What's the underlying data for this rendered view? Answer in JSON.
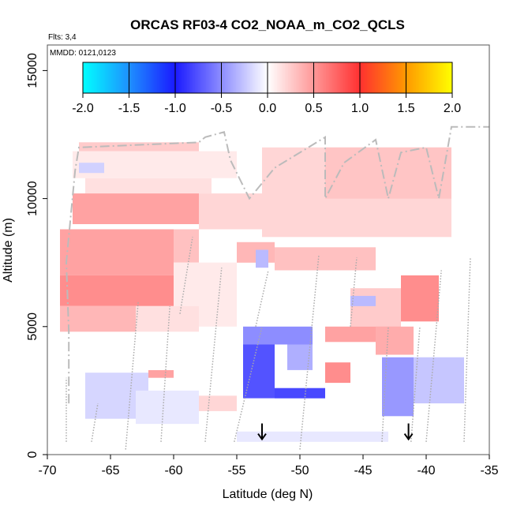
{
  "chart_data": {
    "type": "heatmap",
    "title": "ORCAS RF03-4 CO2_NOAA_m_CO2_QCLS",
    "annotations": [
      "Flts: 3,4",
      "MMDD: 0121,0123"
    ],
    "xlabel": "Latitude (deg N)",
    "ylabel": "Altitude (m)",
    "xlim": [
      -70,
      -35
    ],
    "ylim": [
      0,
      16000
    ],
    "x_ticks": [
      -70,
      -65,
      -60,
      -55,
      -50,
      -45,
      -40,
      -35
    ],
    "x_tick_labels": [
      "-70",
      "-65",
      "-60",
      "-55",
      "-50",
      "-45",
      "-40",
      "-35"
    ],
    "y_ticks": [
      0,
      5000,
      10000,
      15000
    ],
    "y_tick_labels": [
      "0",
      "5000",
      "10000",
      "15000"
    ],
    "colorbar": {
      "range": [
        -2.0,
        2.0
      ],
      "ticks": [
        -2.0,
        -1.5,
        -1.0,
        -0.5,
        0.0,
        0.5,
        1.0,
        1.5,
        2.0
      ],
      "tick_labels": [
        "-2.0",
        "-1.5",
        "-1.0",
        "-0.5",
        "0.0",
        "0.5",
        "1.0",
        "1.5",
        "2.0"
      ],
      "colors": [
        "#00ffff",
        "#1e90ff",
        "#1a1aff",
        "#ffffff",
        "#ff3030",
        "#ff9900",
        "#ffff00"
      ]
    },
    "field_regions": [
      {
        "lat": [
          -67.5,
          -58
        ],
        "alt": [
          11850,
          12200
        ],
        "value": 0.25
      },
      {
        "lat": [
          -68,
          -55
        ],
        "alt": [
          10800,
          11850
        ],
        "value": 0.1
      },
      {
        "lat": [
          -67,
          -57
        ],
        "alt": [
          10200,
          10800
        ],
        "value": 0.15
      },
      {
        "lat": [
          -68,
          -58
        ],
        "alt": [
          9000,
          10200
        ],
        "value": 0.45
      },
      {
        "lat": [
          -58,
          -53
        ],
        "alt": [
          8800,
          10200
        ],
        "value": 0.2
      },
      {
        "lat": [
          -53,
          -38
        ],
        "alt": [
          8500,
          12000
        ],
        "value": 0.2
      },
      {
        "lat": [
          -48,
          -38
        ],
        "alt": [
          10000,
          12000
        ],
        "value": 0.28
      },
      {
        "lat": [
          -69,
          -60
        ],
        "alt": [
          7000,
          8800
        ],
        "value": 0.45
      },
      {
        "lat": [
          -69,
          -60
        ],
        "alt": [
          5800,
          7000
        ],
        "value": 0.55
      },
      {
        "lat": [
          -60,
          -58
        ],
        "alt": [
          7500,
          8800
        ],
        "value": 0.3
      },
      {
        "lat": [
          -60,
          -55
        ],
        "alt": [
          5000,
          7500
        ],
        "value": 0.1
      },
      {
        "lat": [
          -55,
          -52
        ],
        "alt": [
          7500,
          8300
        ],
        "value": 0.35
      },
      {
        "lat": [
          -52,
          -44
        ],
        "alt": [
          7200,
          8100
        ],
        "value": 0.3
      },
      {
        "lat": [
          -69,
          -63
        ],
        "alt": [
          4800,
          5800
        ],
        "value": 0.35
      },
      {
        "lat": [
          -63,
          -58
        ],
        "alt": [
          4800,
          5800
        ],
        "value": 0.15
      },
      {
        "lat": [
          -46,
          -42
        ],
        "alt": [
          5000,
          6500
        ],
        "value": 0.25
      },
      {
        "lat": [
          -42,
          -39
        ],
        "alt": [
          5200,
          7000
        ],
        "value": 0.55
      },
      {
        "lat": [
          -48,
          -42
        ],
        "alt": [
          4400,
          5000
        ],
        "value": 0.45
      },
      {
        "lat": [
          -44,
          -41
        ],
        "alt": [
          3900,
          5000
        ],
        "value": 0.4
      },
      {
        "lat": [
          -48,
          -46
        ],
        "alt": [
          2800,
          3600
        ],
        "value": 0.55
      },
      {
        "lat": [
          -62,
          -60
        ],
        "alt": [
          3000,
          3300
        ],
        "value": 0.45
      },
      {
        "lat": [
          -60,
          -55
        ],
        "alt": [
          1700,
          2300
        ],
        "value": 0.2
      },
      {
        "lat": [
          -54.5,
          -49
        ],
        "alt": [
          4300,
          5000
        ],
        "value": -0.5
      },
      {
        "lat": [
          -54.5,
          -52
        ],
        "alt": [
          2200,
          4300
        ],
        "value": -0.75
      },
      {
        "lat": [
          -52,
          -48
        ],
        "alt": [
          2200,
          2600
        ],
        "value": -0.8
      },
      {
        "lat": [
          -51,
          -49
        ],
        "alt": [
          3300,
          4300
        ],
        "value": -0.35
      },
      {
        "lat": [
          -43.5,
          -41
        ],
        "alt": [
          1500,
          3800
        ],
        "value": -0.45
      },
      {
        "lat": [
          -41,
          -37
        ],
        "alt": [
          2000,
          3800
        ],
        "value": -0.25
      },
      {
        "lat": [
          -67,
          -62
        ],
        "alt": [
          1400,
          3200
        ],
        "value": -0.18
      },
      {
        "lat": [
          -63,
          -58
        ],
        "alt": [
          1200,
          2500
        ],
        "value": -0.1
      },
      {
        "lat": [
          -55,
          -43
        ],
        "alt": [
          500,
          900
        ],
        "value": -0.1
      },
      {
        "lat": [
          -46,
          -44
        ],
        "alt": [
          5800,
          6200
        ],
        "value": -0.3
      },
      {
        "lat": [
          -53.5,
          -52.5
        ],
        "alt": [
          7300,
          8000
        ],
        "value": -0.3
      },
      {
        "lat": [
          -67.5,
          -65.5
        ],
        "alt": [
          11000,
          11400
        ],
        "value": -0.2
      }
    ],
    "flight_track": [
      [
        -68.3,
        2000
      ],
      [
        -68.3,
        4800
      ],
      [
        -68.5,
        7500
      ],
      [
        -67.8,
        11100
      ],
      [
        -67.5,
        12000
      ],
      [
        -58,
        12200
      ],
      [
        -57.5,
        12400
      ],
      [
        -56,
        12600
      ],
      [
        -55.5,
        11500
      ],
      [
        -54,
        10000
      ],
      [
        -52,
        11200
      ],
      [
        -48,
        12400
      ],
      [
        -48,
        10000
      ],
      [
        -46.5,
        11400
      ],
      [
        -44,
        12300
      ],
      [
        -43,
        10000
      ],
      [
        -42,
        11800
      ],
      [
        -40,
        12000
      ],
      [
        -39,
        10000
      ],
      [
        -38,
        12800
      ],
      [
        -35,
        12800
      ]
    ],
    "profile_tracks": [
      [
        [
          -68.5,
          500
        ],
        [
          -68.5,
          3000
        ]
      ],
      [
        [
          -66.5,
          500
        ],
        [
          -66,
          2000
        ]
      ],
      [
        [
          -63.8,
          200
        ],
        [
          -62.8,
          6000
        ]
      ],
      [
        [
          -61,
          500
        ],
        [
          -60.3,
          5800
        ]
      ],
      [
        [
          -59.5,
          5500
        ],
        [
          -58.5,
          8500
        ]
      ],
      [
        [
          -57.5,
          500
        ],
        [
          -56.2,
          7300
        ]
      ],
      [
        [
          -55.2,
          500
        ],
        [
          -53,
          5000
        ]
      ],
      [
        [
          -53.5,
          5000
        ],
        [
          -52.5,
          7200
        ]
      ],
      [
        [
          -50,
          200
        ],
        [
          -48.5,
          7800
        ]
      ],
      [
        [
          -46,
          5000
        ],
        [
          -45.5,
          7700
        ]
      ],
      [
        [
          -43.5,
          500
        ],
        [
          -43,
          5000
        ]
      ],
      [
        [
          -41.2,
          500
        ],
        [
          -40.5,
          5000
        ]
      ],
      [
        [
          -40,
          500
        ],
        [
          -38.8,
          7200
        ]
      ],
      [
        [
          -37,
          500
        ],
        [
          -36.5,
          7700
        ]
      ]
    ],
    "markers": [
      {
        "type": "arrow-down",
        "lat": -53,
        "alt": 600
      },
      {
        "type": "arrow-down",
        "lat": -41.4,
        "alt": 600
      }
    ]
  }
}
